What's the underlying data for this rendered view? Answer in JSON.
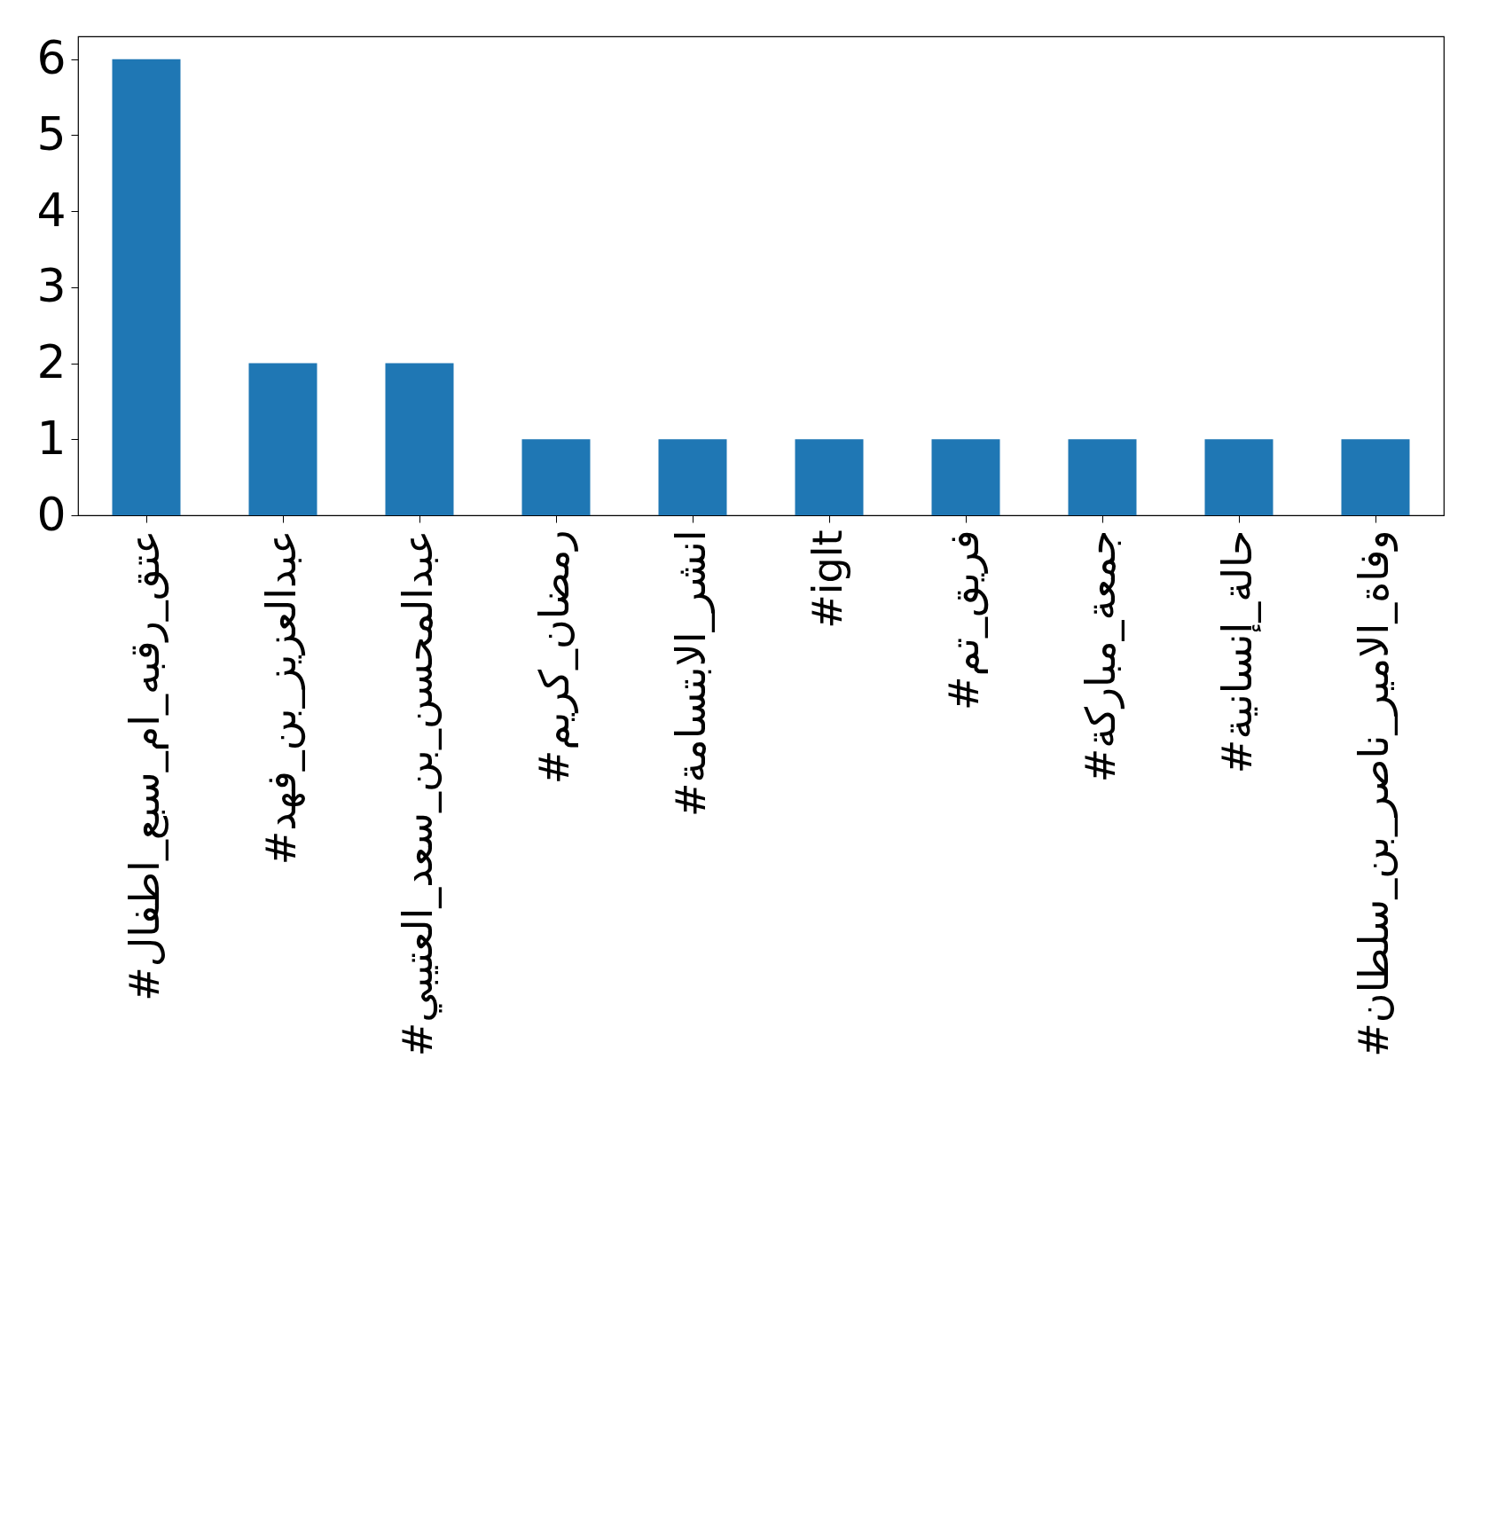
{
  "chart_data": {
    "type": "bar",
    "categories": [
      "#عتق_رقبه_ام_سبع_اطفال",
      "#عبدالعزيز_بن_فهد",
      "#عبدالمحسن_بن_سعد_العتيبي",
      "#رمضان_كريم",
      "#انشر_الابتسامة",
      "#iglt",
      "#فريق_تم",
      "#جمعة_مباركة",
      "#حالة_إنسانية",
      "#وفاة_الامير_ناصر_بن_سلطان"
    ],
    "values": [
      6,
      2,
      2,
      1,
      1,
      1,
      1,
      1,
      1,
      1
    ],
    "color": "#1f77b4",
    "ylim": [
      0,
      6.3
    ],
    "yticks": [
      0,
      1,
      2,
      3,
      4,
      5,
      6
    ],
    "grid": false
  }
}
